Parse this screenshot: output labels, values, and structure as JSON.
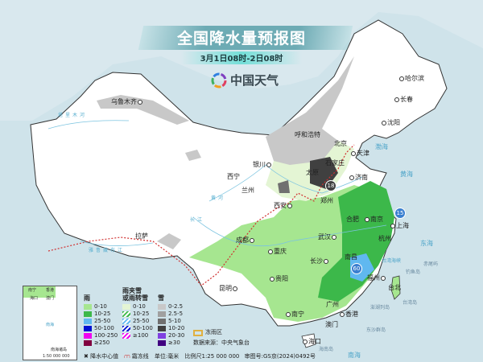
{
  "header": {
    "title": "全国降水量预报图",
    "subtitle": "3月1日08时-2日08时",
    "logo_text": "中国天气"
  },
  "cities": [
    "乌鲁木齐",
    "哈尔滨",
    "长春",
    "沈阳",
    "呼和浩特",
    "北京",
    "天津",
    "石家庄",
    "太原",
    "济南",
    "银川",
    "西宁",
    "兰州",
    "西安",
    "郑州",
    "合肥",
    "南京",
    "上海",
    "杭州",
    "武汉",
    "成都",
    "重庆",
    "长沙",
    "南昌",
    "拉萨",
    "贵阳",
    "昆明",
    "福州",
    "台北",
    "广州",
    "南宁",
    "香港",
    "澳门",
    "海口"
  ],
  "seas": [
    "渤海",
    "黄海",
    "东海",
    "南海",
    "台湾海峡"
  ],
  "islands": [
    "钓鱼岛",
    "赤尾屿",
    "澎湖列岛",
    "东沙群岛",
    "海南岛",
    "台湾岛"
  ],
  "rivers": [
    "塔里木河",
    "黄河",
    "长江",
    "雅鲁藏布江"
  ],
  "max_values": [
    "60",
    "15",
    "18"
  ],
  "legend": {
    "rain": {
      "title": "雨",
      "items": [
        {
          "label": "0-10",
          "color": "#a6e690"
        },
        {
          "label": "10-25",
          "color": "#3cb84a"
        },
        {
          "label": "25-50",
          "color": "#60b8f0"
        },
        {
          "label": "50-100",
          "color": "#0010d0"
        },
        {
          "label": "100-250",
          "color": "#f000f0"
        },
        {
          "label": "≥250",
          "color": "#800040"
        }
      ]
    },
    "mixed": {
      "title_1": "雨夹雪",
      "title_2": "或雨转雪",
      "items": [
        {
          "label": "0-10",
          "color": "#e4f5d4"
        },
        {
          "label": "10-25",
          "color": "#3cb84a"
        },
        {
          "label": "25-50",
          "color": "#60b8f0"
        },
        {
          "label": "50-100",
          "color": "#0010d0"
        },
        {
          "label": "≥100",
          "color": "#f000f0"
        }
      ]
    },
    "snow": {
      "title": "雪",
      "items": [
        {
          "label": "0-2.5",
          "color": "#c8c8c8"
        },
        {
          "label": "2.5-5",
          "color": "#a0a0a0"
        },
        {
          "label": "5-10",
          "color": "#707070"
        },
        {
          "label": "10-20",
          "color": "#404040"
        },
        {
          "label": "20-30",
          "color": "#8040e0"
        },
        {
          "label": "≥30",
          "color": "#400080"
        }
      ]
    },
    "freezing_rain": {
      "label": "冻雨区",
      "color": "#e0b040"
    }
  },
  "footer": {
    "center_marker": "降水中心值",
    "freeze_line": "霜冻线",
    "unit": "单位:毫米",
    "scale": "比例尺1:25 000 000",
    "map_no": "审图号:GS京(2024)0492号",
    "source": "数据来源：中央气象台"
  },
  "inset": {
    "title": "南海诸岛",
    "scale": "1:50 000 000",
    "labels": [
      "南宁",
      "香港",
      "海口",
      "澳门",
      "南海"
    ]
  }
}
